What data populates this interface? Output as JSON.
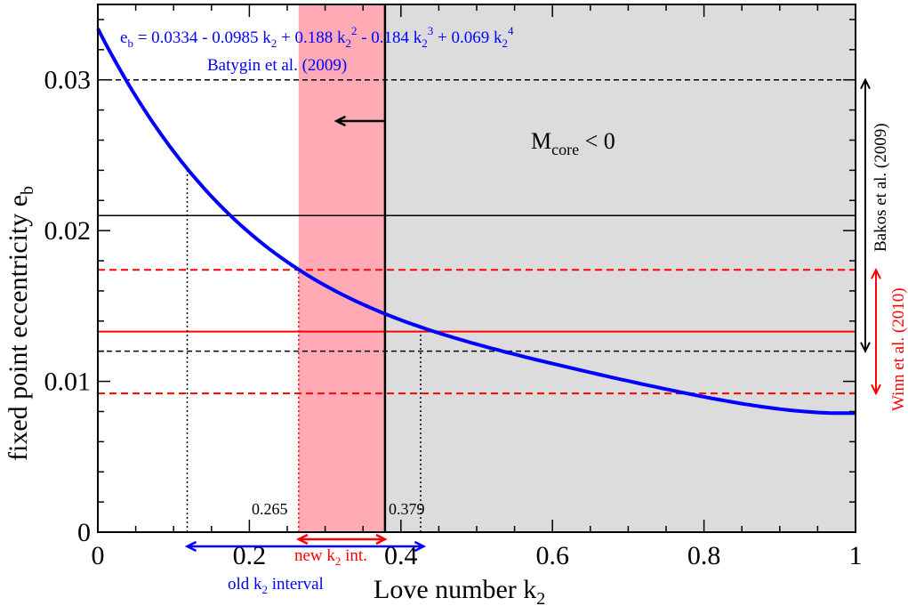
{
  "chart_data": {
    "type": "line",
    "xlabel": "Love number k",
    "xlabel_sub": "2",
    "ylabel": "fixed point eccentricity e",
    "ylabel_sub": "b",
    "xlim": [
      0,
      1
    ],
    "ylim": [
      0,
      0.035
    ],
    "x_ticks": [
      "0",
      "0.2",
      "0.4",
      "0.6",
      "0.8",
      "1"
    ],
    "x_tick_values": [
      0,
      0.2,
      0.4,
      0.6,
      0.8,
      1
    ],
    "y_ticks": [
      "0",
      "0.01",
      "0.02",
      "0.03"
    ],
    "y_tick_values": [
      0,
      0.01,
      0.02,
      0.03
    ],
    "x_minor_step": 0.05,
    "y_minor_step": 0.002,
    "grid": false,
    "curve": {
      "coefficients": [
        0.0334,
        -0.0985,
        0.188,
        -0.184,
        0.069
      ],
      "color": "#0000ff",
      "label": "e_b = 0.0334 - 0.0985 k_2 + 0.188 k_2^2 - 0.184 k_2^3 + 0.069 k_2^4",
      "source": "Batygin et al. (2009)"
    },
    "regions": [
      {
        "from": 0.265,
        "to": 0.379,
        "color": "#ffaab5"
      },
      {
        "from": 0.379,
        "to": 1,
        "color": "#dcdcdc",
        "label": "M",
        "label_sub": "core",
        "label_tail": " < 0"
      }
    ],
    "bakos": {
      "label": "Bakos et al. (2009)",
      "color": "#000000",
      "center": 0.021,
      "upper": 0.03,
      "lower": 0.012
    },
    "winn": {
      "label": "Winn et al. (2010)",
      "color": "#ff0000",
      "center": 0.0133,
      "upper": 0.0174,
      "lower": 0.0092
    },
    "vertical_markers": [
      {
        "x": 0.118,
        "y": 0.0241,
        "color": "#000000"
      },
      {
        "x": 0.265,
        "y": 0.0174,
        "color": "#ff0000",
        "label": "0.265"
      },
      {
        "x": 0.379,
        "y": 0.035,
        "color": "#000000",
        "label": "0.379",
        "solid": true
      },
      {
        "x": 0.426,
        "y": 0.0133,
        "color": "#000000"
      }
    ],
    "intervals": {
      "new": {
        "from": 0.265,
        "to": 0.379,
        "label": "new k",
        "label_sub": "2",
        "label_tail": " int.",
        "color": "#ff0000"
      },
      "old": {
        "from": 0.118,
        "to": 0.43,
        "label": "old k",
        "label_sub": "2",
        "label_tail": " interval",
        "color": "#0000ff"
      }
    }
  }
}
